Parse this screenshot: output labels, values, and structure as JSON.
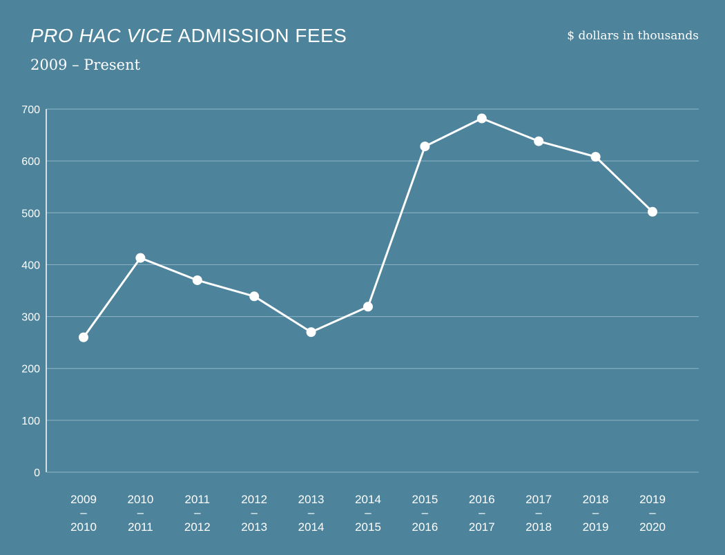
{
  "header": {
    "title_italic": "PRO HAC VICE",
    "title_rest": "ADMISSION FEES",
    "subtitle": "2009 – Present",
    "units_note": "$ dollars in thousands"
  },
  "colors": {
    "background": "#4d849c",
    "line": "#ffffff",
    "grid": "#8fb4c5"
  },
  "chart_data": {
    "type": "line",
    "title": "PRO HAC VICE ADMISSION FEES",
    "subtitle": "2009 – Present",
    "ylabel": "$ dollars in thousands",
    "xlabel": "",
    "ylim": [
      0,
      700
    ],
    "yticks": [
      0,
      100,
      200,
      300,
      400,
      500,
      600,
      700
    ],
    "grid": true,
    "categories": [
      {
        "start": "2009",
        "end": "2010"
      },
      {
        "start": "2010",
        "end": "2011"
      },
      {
        "start": "2011",
        "end": "2012"
      },
      {
        "start": "2012",
        "end": "2013"
      },
      {
        "start": "2013",
        "end": "2014"
      },
      {
        "start": "2014",
        "end": "2015"
      },
      {
        "start": "2015",
        "end": "2016"
      },
      {
        "start": "2016",
        "end": "2017"
      },
      {
        "start": "2017",
        "end": "2018"
      },
      {
        "start": "2018",
        "end": "2019"
      },
      {
        "start": "2019",
        "end": "2020"
      }
    ],
    "category_separator": "–",
    "series": [
      {
        "values": [
          260,
          413,
          370,
          339,
          270,
          319,
          628,
          682,
          638,
          608,
          502
        ]
      }
    ]
  }
}
